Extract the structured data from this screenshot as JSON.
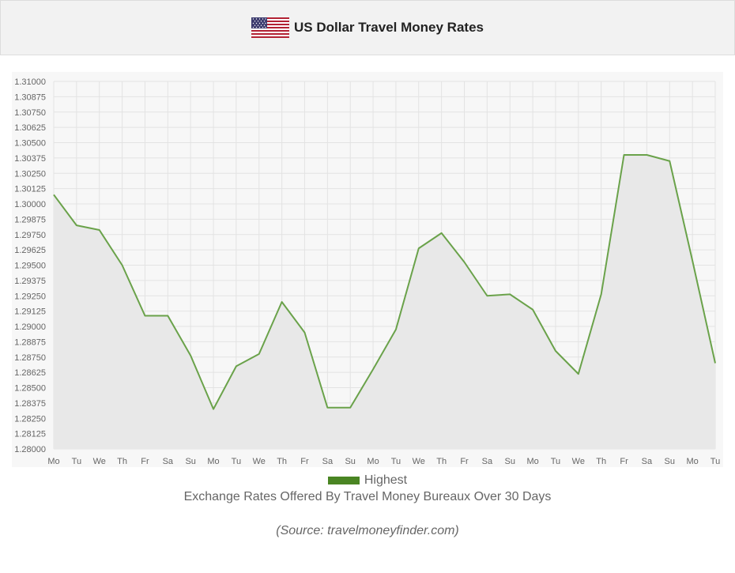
{
  "header": {
    "title": "US Dollar Travel Money Rates",
    "flag_icon": "us-flag-icon"
  },
  "chart_data": {
    "type": "area",
    "categories": [
      "Mo",
      "Tu",
      "We",
      "Th",
      "Fr",
      "Sa",
      "Su",
      "Mo",
      "Tu",
      "We",
      "Th",
      "Fr",
      "Sa",
      "Su",
      "Mo",
      "Tu",
      "We",
      "Th",
      "Fr",
      "Sa",
      "Su",
      "Mo",
      "Tu",
      "We",
      "Th",
      "Fr",
      "Sa",
      "Su",
      "Mo",
      "Tu"
    ],
    "series": [
      {
        "name": "Highest",
        "color": "#4a8523",
        "values": [
          1.30075,
          1.29825,
          1.29787,
          1.295,
          1.29087,
          1.29087,
          1.28762,
          1.28325,
          1.28675,
          1.28775,
          1.292,
          1.2895,
          1.28337,
          1.28337,
          1.2865,
          1.28975,
          1.29637,
          1.29762,
          1.29525,
          1.2925,
          1.29262,
          1.29137,
          1.288,
          1.28612,
          1.29262,
          1.304,
          1.304,
          1.3035,
          1.29537,
          1.287
        ]
      }
    ],
    "y_ticks": [
      "1.28000",
      "1.28125",
      "1.28250",
      "1.28375",
      "1.28500",
      "1.28625",
      "1.28750",
      "1.28875",
      "1.29000",
      "1.29125",
      "1.29250",
      "1.29375",
      "1.29500",
      "1.29625",
      "1.29750",
      "1.29875",
      "1.30000",
      "1.30125",
      "1.30250",
      "1.30375",
      "1.30500",
      "1.30625",
      "1.30750",
      "1.30875",
      "1.31000"
    ],
    "ylim": [
      1.28,
      1.31
    ],
    "grid": true,
    "legend_position": "bottom",
    "fill_color": "#e8e8e8",
    "plot_background": "#f7f7f7",
    "grid_color": "#e3e3e3"
  },
  "legend": {
    "label": "Highest"
  },
  "subtitle": "Exchange Rates Offered By Travel Money Bureaux Over 30 Days",
  "source": "(Source: travelmoneyfinder.com)"
}
